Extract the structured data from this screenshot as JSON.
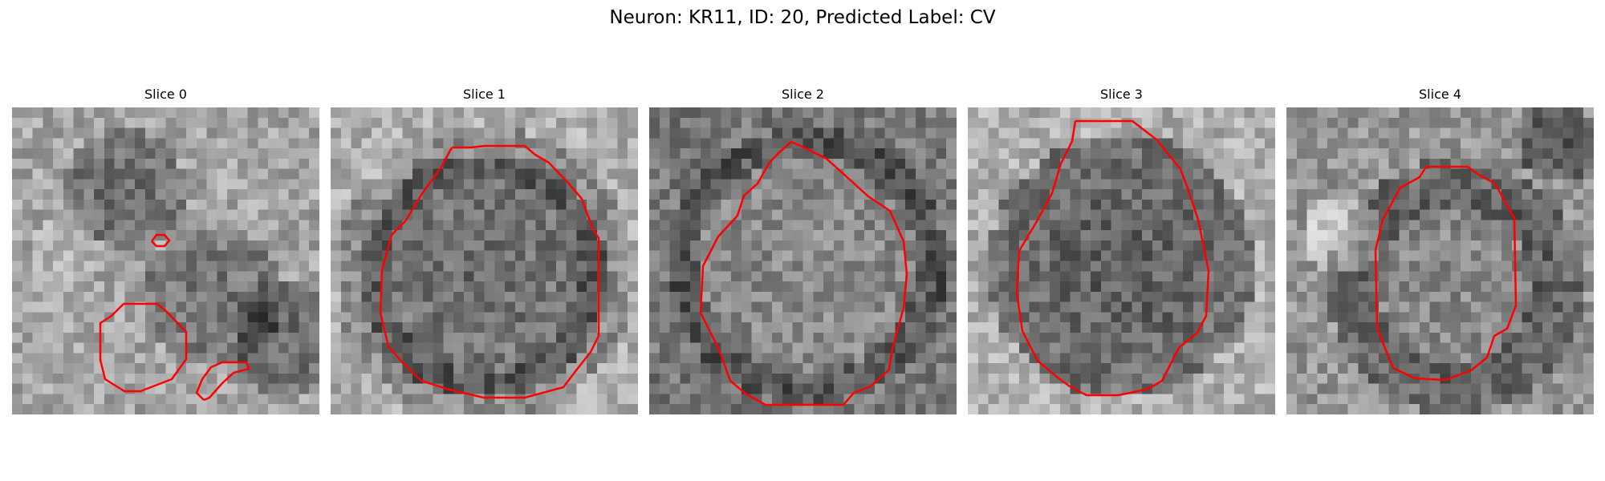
{
  "figure": {
    "title": "Neuron: KR11, ID: 20, Predicted Label: CV"
  },
  "panels": [
    {
      "title": "Slice 0",
      "pattern": "two-blobs-dark-right"
    },
    {
      "title": "Slice 1",
      "pattern": "large-dark-cell"
    },
    {
      "title": "Slice 2",
      "pattern": "large-light-cell"
    },
    {
      "title": "Slice 3",
      "pattern": "large-dark-cell-2"
    },
    {
      "title": "Slice 4",
      "pattern": "medium-cell-bright-surround"
    }
  ],
  "colors": {
    "contour": "#ff0000",
    "background": "#ffffff",
    "text": "#000000"
  }
}
